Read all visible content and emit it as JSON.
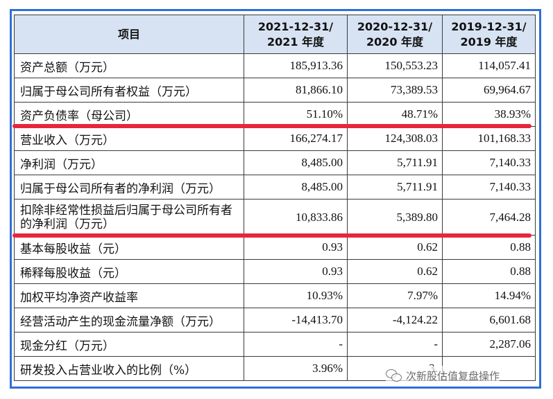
{
  "table": {
    "headers": {
      "item": "项目",
      "col1_line1": "2021-12-31/",
      "col1_line2": "2021 年度",
      "col2_line1": "2020-12-31/",
      "col2_line2": "2020 年度",
      "col3_line1": "2019-12-31/",
      "col3_line2": "2019 年度"
    },
    "rows": [
      {
        "label": "资产总额（万元）",
        "v2021": "185,913.36",
        "v2020": "150,553.23",
        "v2019": "114,057.41"
      },
      {
        "label": "归属于母公司所有者权益（万元）",
        "v2021": "81,866.10",
        "v2020": "73,389.53",
        "v2019": "69,964.67"
      },
      {
        "label": "资产负债率（母公司）",
        "v2021": "51.10%",
        "v2020": "48.71%",
        "v2019": "38.93%"
      },
      {
        "label": "营业收入（万元）",
        "v2021": "166,274.17",
        "v2020": "124,308.03",
        "v2019": "101,168.33"
      },
      {
        "label": "净利润（万元）",
        "v2021": "8,485.00",
        "v2020": "5,711.91",
        "v2019": "7,140.33"
      },
      {
        "label": "归属于母公司所有者的净利润（万元）",
        "v2021": "8,485.00",
        "v2020": "5,711.91",
        "v2019": "7,140.33"
      },
      {
        "label": "扣除非经常性损益后归属于母公司所有者的净利润（万元）",
        "v2021": "10,833.86",
        "v2020": "5,389.80",
        "v2019": "7,464.28"
      },
      {
        "label": "基本每股收益（元）",
        "v2021": "0.93",
        "v2020": "0.62",
        "v2019": "0.88"
      },
      {
        "label": "稀释每股收益（元）",
        "v2021": "0.93",
        "v2020": "0.62",
        "v2019": "0.88"
      },
      {
        "label": "加权平均净资产收益率",
        "v2021": "10.93%",
        "v2020": "7.97%",
        "v2019": "14.94%"
      },
      {
        "label": "经营活动产生的现金流量净额（万元）",
        "v2021": "-14,413.70",
        "v2020": "-4,124.22",
        "v2019": "6,601.68"
      },
      {
        "label": "现金分红（万元）",
        "v2021": "-",
        "v2020": "-",
        "v2019": "2,287.06"
      },
      {
        "label": "研发投入占营业收入的比例（%）",
        "v2021": "3.96%",
        "v2020": "3.",
        "v2019": ""
      }
    ]
  },
  "watermark": {
    "text": "次新股估值复盘操作",
    "icon": "wechat-icon"
  },
  "colors": {
    "frame_border": "#2d6fd9",
    "header_bg": "#d7e3f2",
    "highlight_line": "#e8263a"
  }
}
